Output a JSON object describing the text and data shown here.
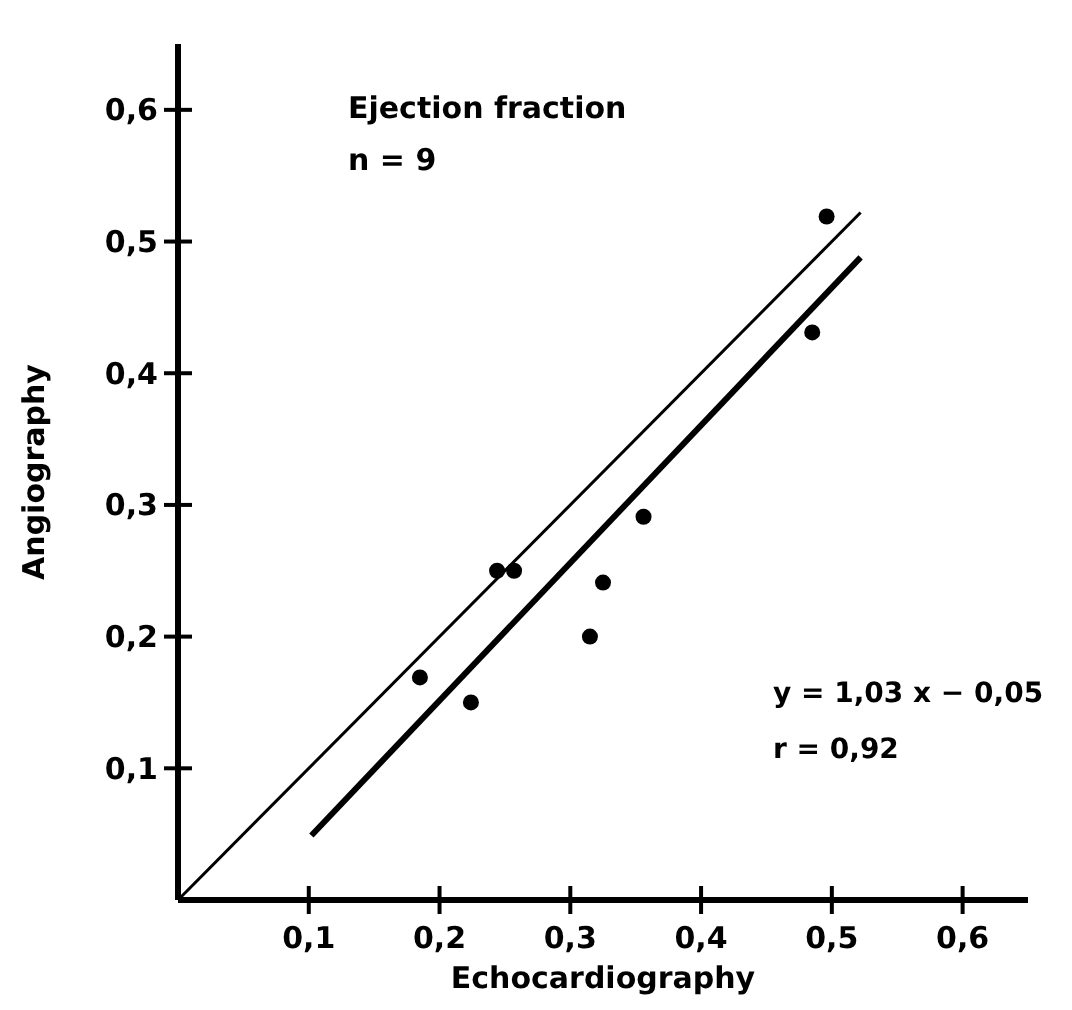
{
  "chart_data": {
    "type": "scatter",
    "title": "Ejection fraction",
    "subtitle": "n = 9",
    "xlabel": "Echocardiography",
    "ylabel": "Angiography",
    "annotations": [
      "y = 1,03 x − 0,05",
      "r = 0,92"
    ],
    "xlim": [
      0,
      0.65
    ],
    "ylim": [
      0,
      0.65
    ],
    "xticks": [
      {
        "value": 0.1,
        "label": "0,1"
      },
      {
        "value": 0.2,
        "label": "0,2"
      },
      {
        "value": 0.3,
        "label": "0,3"
      },
      {
        "value": 0.4,
        "label": "0,4"
      },
      {
        "value": 0.5,
        "label": "0,5"
      },
      {
        "value": 0.6,
        "label": "0,6"
      }
    ],
    "yticks": [
      {
        "value": 0.1,
        "label": "0,1"
      },
      {
        "value": 0.2,
        "label": "0,2"
      },
      {
        "value": 0.3,
        "label": "0,3"
      },
      {
        "value": 0.4,
        "label": "0,4"
      },
      {
        "value": 0.5,
        "label": "0,5"
      },
      {
        "value": 0.6,
        "label": "0,6"
      }
    ],
    "grid": false,
    "series": [
      {
        "color": "#000000",
        "marker": "circle",
        "x": [
          0.185,
          0.224,
          0.244,
          0.257,
          0.315,
          0.325,
          0.356,
          0.485,
          0.496
        ],
        "values": [
          0.169,
          0.15,
          0.25,
          0.25,
          0.2,
          0.241,
          0.291,
          0.431,
          0.519
        ]
      },
      {
        "type": "line",
        "color": "#000000",
        "marker": "none",
        "line_style": "solid",
        "x": [
          0,
          0.522
        ],
        "values": [
          0,
          0.522
        ]
      },
      {
        "type": "line",
        "color": "#000000",
        "marker": "none",
        "line_style": "solid",
        "x": [
          0.102,
          0.522
        ],
        "values": [
          0.049,
          0.488
        ]
      }
    ]
  }
}
